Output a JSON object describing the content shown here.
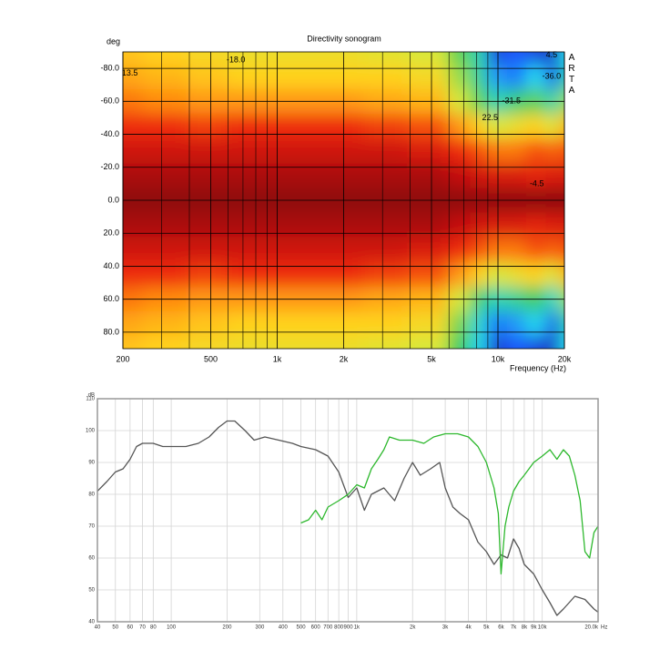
{
  "chart_data": [
    {
      "type": "heatmap",
      "title": "Directivity sonogram",
      "y_label": "deg",
      "x_label": "Frequency (Hz)",
      "side_text": "ARTA",
      "log_x": true,
      "grid": true,
      "xlim": [
        200,
        20000
      ],
      "xticks": [
        200,
        500,
        {
          "value": 1000,
          "label": "1k"
        },
        {
          "value": 2000,
          "label": "2k"
        },
        {
          "value": 5000,
          "label": "5k"
        },
        {
          "value": 10000,
          "label": "10k"
        },
        {
          "value": 20000,
          "label": "20k"
        }
      ],
      "xminor": [
        300,
        400,
        600,
        700,
        800,
        900,
        3000,
        4000,
        6000,
        7000,
        8000,
        9000
      ],
      "ylim": [
        -90,
        90
      ],
      "yticks": [
        {
          "value": -80,
          "label": "-80.0"
        },
        {
          "value": -60,
          "label": "-60.0"
        },
        {
          "value": -40,
          "label": "-40.0"
        },
        {
          "value": -20,
          "label": "-20.0"
        },
        {
          "value": 0,
          "label": "0.0"
        },
        {
          "value": 20,
          "label": "20.0"
        },
        {
          "value": 40,
          "label": "40.0"
        },
        {
          "value": 60,
          "label": "60.0"
        },
        {
          "value": 80,
          "label": "80.0"
        }
      ],
      "x": [
        200,
        300,
        500,
        700,
        1000,
        2000,
        3000,
        5000,
        7000,
        8000,
        10000,
        12000,
        15000,
        18000,
        20000
      ],
      "y": [
        -90,
        -75,
        -60,
        -45,
        -30,
        -15,
        0,
        15,
        30,
        45,
        60,
        75,
        90
      ],
      "values": [
        [
          -15,
          -16,
          -17,
          -18,
          -18,
          -18,
          -19,
          -20,
          -24,
          -28,
          -36,
          -34,
          -36,
          -38,
          -30
        ],
        [
          -13,
          -14,
          -15,
          -16,
          -16,
          -16,
          -16,
          -17,
          -22,
          -27,
          -32,
          -33,
          -30,
          -35,
          -28
        ],
        [
          -10,
          -11,
          -12,
          -12,
          -12,
          -12,
          -13,
          -14,
          -20,
          -24,
          -28,
          -26,
          -24,
          -28,
          -22
        ],
        [
          -6,
          -6,
          -7,
          -6,
          -6,
          -6,
          -7,
          -8,
          -12,
          -16,
          -20,
          -18,
          -16,
          -20,
          -14
        ],
        [
          -3,
          -3,
          -3,
          -3,
          -3,
          -3,
          -3,
          -4,
          -6,
          -8,
          -10,
          -10,
          -8,
          -9,
          -8
        ],
        [
          -1,
          -1,
          -1,
          -1,
          -1,
          -1,
          -1,
          -1,
          -2,
          -3,
          -4,
          -4,
          -5,
          -4,
          -4
        ],
        [
          0,
          0,
          0,
          0,
          0,
          0,
          0,
          0,
          0,
          0,
          0,
          0,
          0,
          0,
          0
        ],
        [
          -1,
          -1,
          -1,
          -1,
          -1,
          -1,
          -1,
          -1,
          -2,
          -3,
          -4,
          -4,
          -5,
          -4,
          -4
        ],
        [
          -3,
          -3,
          -3,
          -3,
          -3,
          -3,
          -3,
          -4,
          -6,
          -8,
          -10,
          -10,
          -8,
          -9,
          -8
        ],
        [
          -6,
          -6,
          -7,
          -6,
          -6,
          -6,
          -7,
          -8,
          -12,
          -16,
          -20,
          -18,
          -16,
          -20,
          -14
        ],
        [
          -10,
          -11,
          -12,
          -12,
          -12,
          -12,
          -13,
          -14,
          -20,
          -26,
          -28,
          -27,
          -25,
          -29,
          -22
        ],
        [
          -13,
          -14,
          -15,
          -16,
          -16,
          -16,
          -16,
          -17,
          -23,
          -29,
          -33,
          -32,
          -30,
          -35,
          -28
        ],
        [
          -15,
          -16,
          -17,
          -18,
          -18,
          -18,
          -19,
          -20,
          -25,
          -30,
          -37,
          -34,
          -36,
          -38,
          -30
        ]
      ],
      "colorscale": [
        {
          "value": -40,
          "color": "#1a1aa0"
        },
        {
          "value": -34,
          "color": "#1e5cff"
        },
        {
          "value": -30,
          "color": "#22d8f0"
        },
        {
          "value": -25,
          "color": "#3ccc5a"
        },
        {
          "value": -20,
          "color": "#d8e83a"
        },
        {
          "value": -16,
          "color": "#ffd21e"
        },
        {
          "value": -11,
          "color": "#ff8a10"
        },
        {
          "value": -6,
          "color": "#ee2a0c"
        },
        {
          "value": -2,
          "color": "#c41008"
        },
        {
          "value": 0,
          "color": "#901008"
        }
      ],
      "annotations": [
        {
          "text": "-18.0",
          "x": 650,
          "y": -85
        },
        {
          "text": "13.5",
          "x": 215,
          "y": -77
        },
        {
          "text": "-31.5",
          "x": 11500,
          "y": -60
        },
        {
          "text": "-36.0",
          "x": 17500,
          "y": -75
        },
        {
          "text": "22.5",
          "x": 9200,
          "y": -50
        },
        {
          "text": "-4.5",
          "x": 15000,
          "y": -10
        },
        {
          "text": "4.5",
          "x": 17500,
          "y": -88
        }
      ]
    },
    {
      "type": "line",
      "y_label": "dB",
      "x_unit": "Hz",
      "log_x": true,
      "grid": true,
      "xlim": [
        40,
        20000
      ],
      "xticks": [
        40,
        50,
        60,
        70,
        80,
        100,
        200,
        300,
        400,
        500,
        600,
        700,
        800,
        900,
        {
          "value": 1000,
          "label": "1k"
        },
        {
          "value": 2000,
          "label": "2k"
        },
        {
          "value": 3000,
          "label": "3k"
        },
        {
          "value": 4000,
          "label": "4k"
        },
        {
          "value": 5000,
          "label": "5k"
        },
        {
          "value": 6000,
          "label": "6k"
        },
        {
          "value": 7000,
          "label": "7k"
        },
        {
          "value": 8000,
          "label": "8k"
        },
        {
          "value": 9000,
          "label": "9k"
        },
        {
          "value": 10000,
          "label": "10k"
        },
        {
          "value": 20000,
          "label": "20.0k"
        }
      ],
      "ylim": [
        40,
        110
      ],
      "yticks": [
        40,
        50,
        60,
        70,
        80,
        90,
        100,
        110
      ],
      "series": [
        {
          "color": "#555555",
          "x": [
            40,
            45,
            50,
            55,
            60,
            65,
            70,
            80,
            90,
            100,
            120,
            140,
            160,
            180,
            200,
            220,
            250,
            280,
            320,
            380,
            450,
            500,
            600,
            700,
            800,
            900,
            1000,
            1100,
            1200,
            1400,
            1600,
            1800,
            2000,
            2200,
            2500,
            2800,
            3000,
            3300,
            3600,
            4000,
            4500,
            5000,
            5500,
            6000,
            6500,
            7000,
            7500,
            8000,
            9000,
            10000,
            11000,
            12000,
            13000,
            15000,
            17000,
            19000,
            20000
          ],
          "values": [
            81,
            84,
            87,
            88,
            91,
            95,
            96,
            96,
            95,
            95,
            95,
            96,
            98,
            101,
            103,
            103,
            100,
            97,
            98,
            97,
            96,
            95,
            94,
            92,
            87,
            79,
            82,
            75,
            80,
            82,
            78,
            85,
            90,
            86,
            88,
            90,
            82,
            76,
            74,
            72,
            65,
            62,
            58,
            61,
            60,
            66,
            63,
            58,
            55,
            50,
            46,
            42,
            44,
            48,
            47,
            44,
            43
          ]
        },
        {
          "color": "#2db82d",
          "x": [
            500,
            550,
            600,
            650,
            700,
            800,
            900,
            1000,
            1100,
            1200,
            1300,
            1400,
            1500,
            1700,
            2000,
            2300,
            2600,
            3000,
            3500,
            4000,
            4500,
            5000,
            5500,
            5800,
            6000,
            6300,
            6600,
            7000,
            7500,
            8000,
            9000,
            10000,
            11000,
            12000,
            13000,
            14000,
            15000,
            16000,
            17000,
            18000,
            19000,
            20000
          ],
          "values": [
            71,
            72,
            75,
            72,
            76,
            78,
            80,
            83,
            82,
            88,
            91,
            94,
            98,
            97,
            97,
            96,
            98,
            99,
            99,
            98,
            95,
            90,
            82,
            74,
            55,
            70,
            76,
            81,
            84,
            86,
            90,
            92,
            94,
            91,
            94,
            92,
            86,
            78,
            62,
            60,
            68,
            70
          ]
        }
      ]
    }
  ]
}
